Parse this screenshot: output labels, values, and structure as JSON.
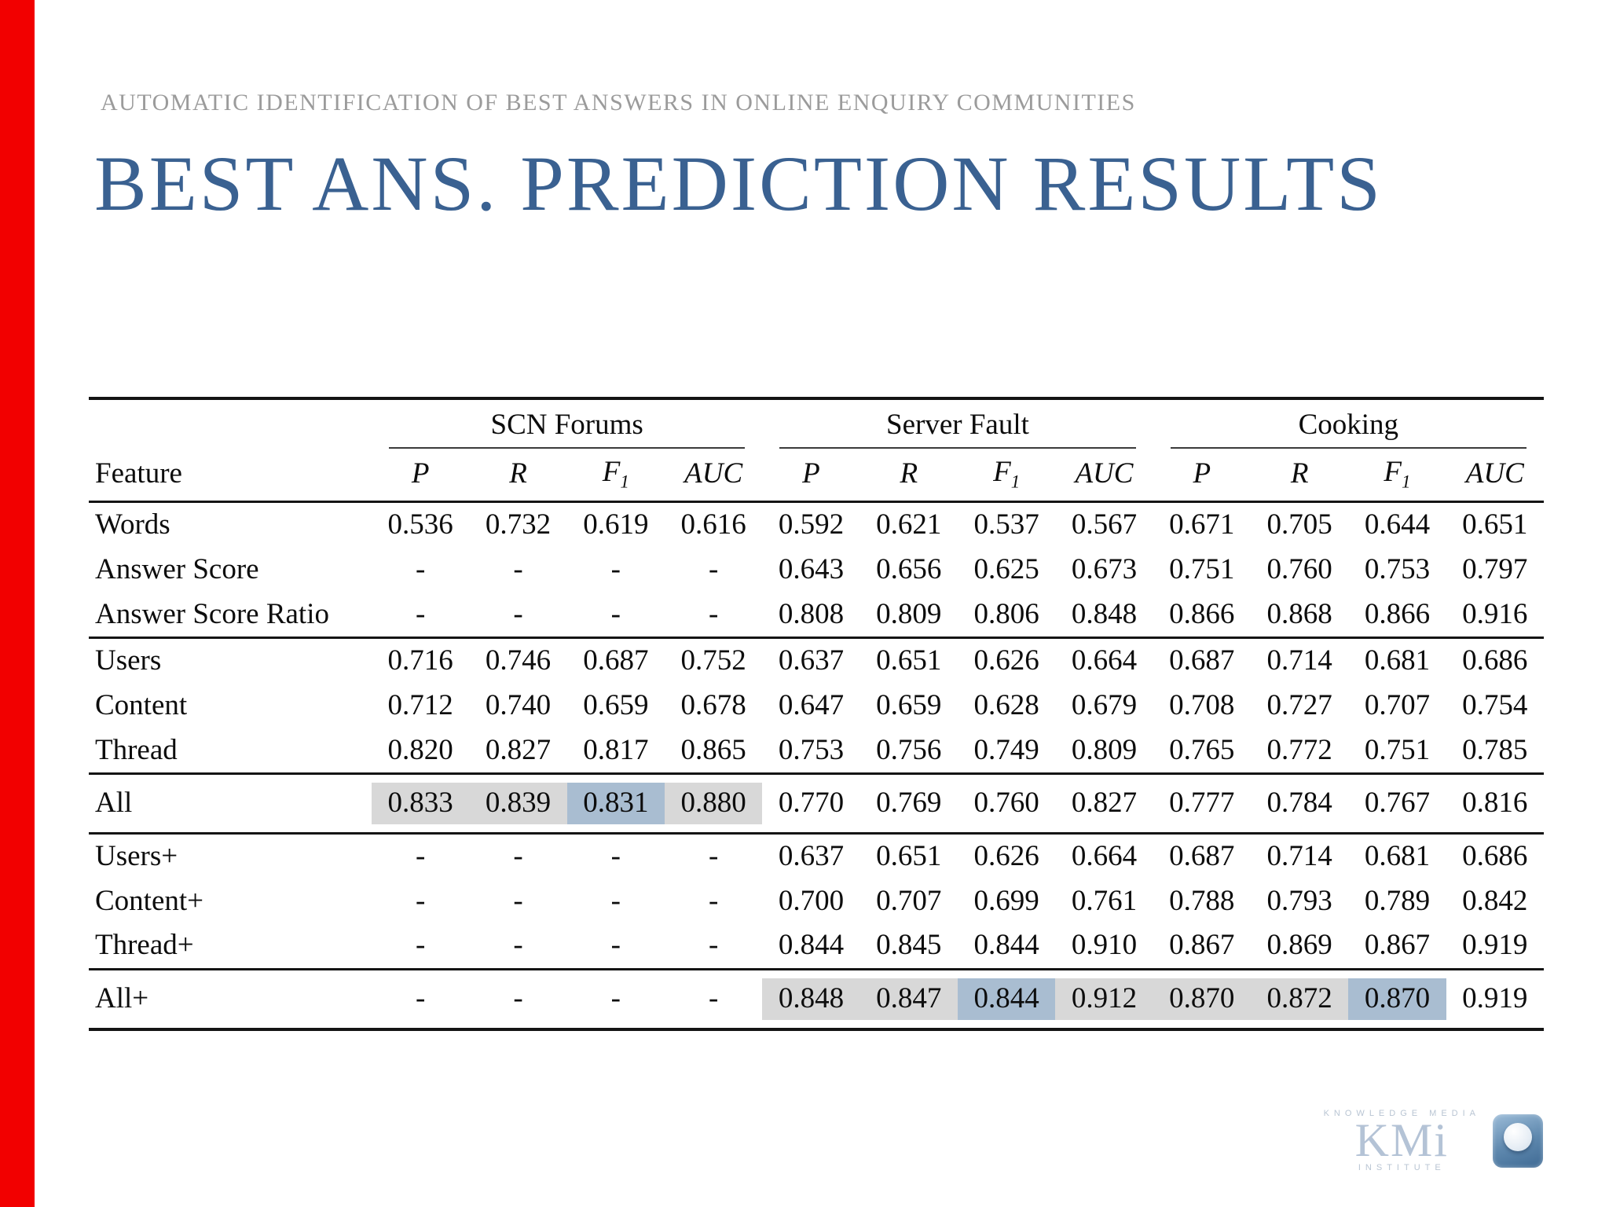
{
  "colors": {
    "accent-red": "#f20000",
    "title-blue": "#3a6191",
    "kicker-gray": "#9b9b9b",
    "rule": "#141414",
    "hl-gray": "#d8d8d8",
    "hl-blue": "#a9bdd1",
    "kmi-blue": "#b4c3d6"
  },
  "slide": {
    "kicker": "AUTOMATIC IDENTIFICATION OF BEST ANSWERS IN ONLINE ENQUIRY COMMUNITIES",
    "title": "BEST ANS. PREDICTION RESULTS"
  },
  "logo": {
    "top": "KNOWLEDGE MEDIA",
    "name": "KMi",
    "bottom": "INSTITUTE"
  },
  "chart_data": {
    "type": "table",
    "feature_header": "Feature",
    "groups": [
      "SCN Forums",
      "Server Fault",
      "Cooking"
    ],
    "metrics": [
      "P",
      "R",
      "F1",
      "AUC"
    ],
    "highlight_legend": {
      "1": "light-gray-band",
      "2": "blue-band"
    },
    "row_groups": [
      {
        "rows": [
          {
            "feature": "Words",
            "values": [
              "0.536",
              "0.732",
              "0.619",
              "0.616",
              "0.592",
              "0.621",
              "0.537",
              "0.567",
              "0.671",
              "0.705",
              "0.644",
              "0.651"
            ]
          },
          {
            "feature": "Answer Score",
            "values": [
              "-",
              "-",
              "-",
              "-",
              "0.643",
              "0.656",
              "0.625",
              "0.673",
              "0.751",
              "0.760",
              "0.753",
              "0.797"
            ]
          },
          {
            "feature": "Answer Score Ratio",
            "values": [
              "-",
              "-",
              "-",
              "-",
              "0.808",
              "0.809",
              "0.806",
              "0.848",
              "0.866",
              "0.868",
              "0.866",
              "0.916"
            ]
          }
        ]
      },
      {
        "rows": [
          {
            "feature": "Users",
            "values": [
              "0.716",
              "0.746",
              "0.687",
              "0.752",
              "0.637",
              "0.651",
              "0.626",
              "0.664",
              "0.687",
              "0.714",
              "0.681",
              "0.686"
            ]
          },
          {
            "feature": "Content",
            "values": [
              "0.712",
              "0.740",
              "0.659",
              "0.678",
              "0.647",
              "0.659",
              "0.628",
              "0.679",
              "0.708",
              "0.727",
              "0.707",
              "0.754"
            ]
          },
          {
            "feature": "Thread",
            "values": [
              "0.820",
              "0.827",
              "0.817",
              "0.865",
              "0.753",
              "0.756",
              "0.749",
              "0.809",
              "0.765",
              "0.772",
              "0.751",
              "0.785"
            ]
          }
        ]
      },
      {
        "rows": [
          {
            "feature": "All",
            "values": [
              "0.833",
              "0.839",
              "0.831",
              "0.880",
              "0.770",
              "0.769",
              "0.760",
              "0.827",
              "0.777",
              "0.784",
              "0.767",
              "0.816"
            ],
            "hl": [
              1,
              1,
              2,
              1,
              0,
              0,
              0,
              0,
              0,
              0,
              0,
              0
            ]
          }
        ]
      },
      {
        "rows": [
          {
            "feature": "Users+",
            "values": [
              "-",
              "-",
              "-",
              "-",
              "0.637",
              "0.651",
              "0.626",
              "0.664",
              "0.687",
              "0.714",
              "0.681",
              "0.686"
            ]
          },
          {
            "feature": "Content+",
            "values": [
              "-",
              "-",
              "-",
              "-",
              "0.700",
              "0.707",
              "0.699",
              "0.761",
              "0.788",
              "0.793",
              "0.789",
              "0.842"
            ]
          },
          {
            "feature": "Thread+",
            "values": [
              "-",
              "-",
              "-",
              "-",
              "0.844",
              "0.845",
              "0.844",
              "0.910",
              "0.867",
              "0.869",
              "0.867",
              "0.919"
            ]
          }
        ]
      },
      {
        "rows": [
          {
            "feature": "All+",
            "values": [
              "-",
              "-",
              "-",
              "-",
              "0.848",
              "0.847",
              "0.844",
              "0.912",
              "0.870",
              "0.872",
              "0.870",
              "0.919"
            ],
            "hl": [
              0,
              0,
              0,
              0,
              1,
              1,
              2,
              1,
              1,
              1,
              2,
              0
            ]
          }
        ]
      }
    ]
  }
}
